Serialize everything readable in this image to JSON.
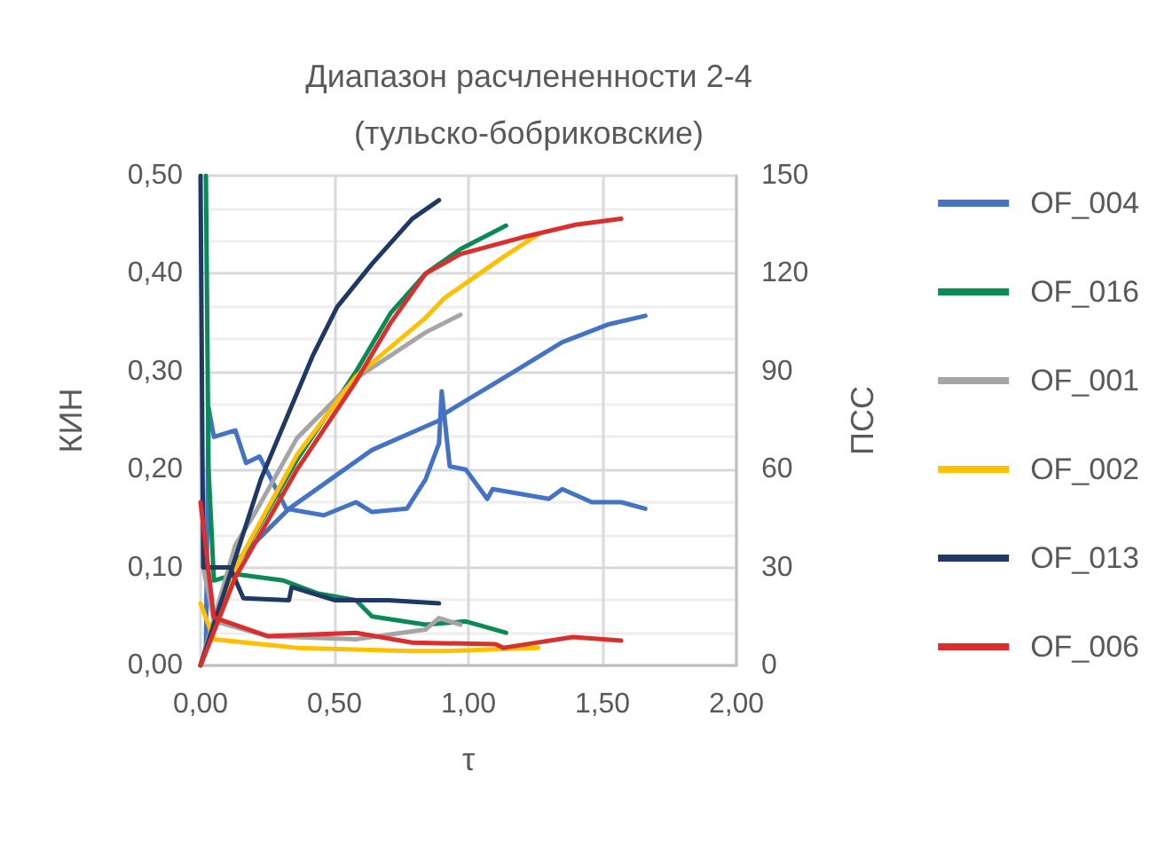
{
  "chart_data": {
    "type": "line",
    "title": "Диапазон расчлененности 2-4\n(тульско-бобриковские)",
    "xlabel": "τ",
    "ylabel": "КИН",
    "y2label": "ПСС",
    "xlim": [
      0,
      2
    ],
    "xticks": [
      {
        "value": 0,
        "label": "0,00"
      },
      {
        "value": 0.5,
        "label": "0,50"
      },
      {
        "value": 1,
        "label": "1,00"
      },
      {
        "value": 1.5,
        "label": "1,50"
      },
      {
        "value": 2,
        "label": "2,00"
      }
    ],
    "ylim": [
      0,
      0.5
    ],
    "yticks": [
      {
        "value": 0,
        "label": "0,00"
      },
      {
        "value": 0.1,
        "label": "0,10"
      },
      {
        "value": 0.2,
        "label": "0,20"
      },
      {
        "value": 0.3,
        "label": "0,30"
      },
      {
        "value": 0.4,
        "label": "0,40"
      },
      {
        "value": 0.5,
        "label": "0,50"
      }
    ],
    "y2lim": [
      0,
      150
    ],
    "y2ticks": [
      0,
      30,
      60,
      90,
      120,
      150
    ],
    "grid": true,
    "legend": "right",
    "marker": "none",
    "line_style": "solid",
    "series": [
      {
        "name": "OF_004",
        "color": "#4472c4",
        "x": [
          0,
          0.11,
          0.33,
          0.64,
          0.89,
          0.91,
          1.17,
          1.35,
          1.52,
          1.66
        ],
        "values": [
          0,
          0.1,
          0.16,
          0.22,
          0.25,
          0.257,
          0.3,
          0.33,
          0.348,
          0.357
        ]
      },
      {
        "color": "#4472c4",
        "axis": "y2",
        "x": [
          0.02,
          0.03,
          0.05,
          0.13,
          0.17,
          0.22,
          0.32,
          0.46,
          0.58,
          0.64,
          0.77,
          0.84,
          0.89,
          0.9,
          0.93,
          0.99,
          1.07,
          1.09,
          1.3,
          1.35,
          1.46,
          1.57,
          1.66
        ],
        "values": [
          5,
          79,
          70,
          72,
          62,
          64,
          48,
          46,
          50,
          47,
          48,
          57,
          68,
          84,
          61,
          60,
          51,
          54,
          51,
          54,
          50,
          50,
          48
        ]
      },
      {
        "name": "OF_016",
        "color": "#0a8a55",
        "x": [
          0,
          0.13,
          0.36,
          0.58,
          0.71,
          0.84,
          0.97,
          1.14
        ],
        "values": [
          0,
          0.1,
          0.21,
          0.3,
          0.36,
          0.4,
          0.425,
          0.449
        ]
      },
      {
        "color": "#0a8a55",
        "axis": "y2",
        "x": [
          0.02,
          0.03,
          0.05,
          0.13,
          0.31,
          0.44,
          0.58,
          0.64,
          0.84,
          0.99,
          1.14
        ],
        "values": [
          150,
          60,
          26,
          28,
          26,
          22,
          20,
          15,
          12.5,
          13.5,
          10
        ]
      },
      {
        "name": "OF_001",
        "color": "#a5a5a5",
        "x": [
          0,
          0.13,
          0.2,
          0.36,
          0.58,
          0.84,
          0.97
        ],
        "values": [
          0,
          0.123,
          0.154,
          0.232,
          0.293,
          0.34,
          0.358
        ]
      },
      {
        "color": "#a5a5a5",
        "axis": "y2",
        "x": [
          0.01,
          0.05,
          0.25,
          0.58,
          0.84,
          0.89,
          0.97
        ],
        "values": [
          30,
          13.6,
          9,
          8,
          11,
          14.5,
          12.5
        ]
      },
      {
        "name": "OF_002",
        "color": "#ffc000",
        "x": [
          0,
          0.13,
          0.36,
          0.58,
          0.71,
          0.84,
          0.91,
          1.13,
          1.26
        ],
        "values": [
          0,
          0.1,
          0.215,
          0.295,
          0.325,
          0.355,
          0.375,
          0.417,
          0.44
        ]
      },
      {
        "color": "#ffc000",
        "axis": "y2",
        "x": [
          0,
          0.05,
          0.36,
          0.79,
          0.91,
          1.26
        ],
        "values": [
          19,
          8,
          5.4,
          4.4,
          4.4,
          5.4
        ]
      },
      {
        "name": "OF_013",
        "color": "#203864",
        "x": [
          0,
          0.225,
          0.42,
          0.51,
          0.64,
          0.79,
          0.89
        ],
        "values": [
          0,
          0.19,
          0.317,
          0.366,
          0.41,
          0.456,
          0.475
        ]
      },
      {
        "color": "#203864",
        "axis": "y2",
        "x": [
          0,
          0.01,
          0.11,
          0.16,
          0.33,
          0.34,
          0.5,
          0.7,
          0.89
        ],
        "values": [
          150,
          30,
          30,
          20.6,
          20,
          24,
          20,
          20,
          19
        ]
      },
      {
        "name": "OF_006",
        "color": "#d9302f",
        "x": [
          0,
          0.13,
          0.36,
          0.58,
          0.71,
          0.84,
          0.97,
          1.2,
          1.4,
          1.57
        ],
        "values": [
          0,
          0.09,
          0.2,
          0.29,
          0.35,
          0.4,
          0.42,
          0.437,
          0.45,
          0.456
        ]
      },
      {
        "color": "#d9302f",
        "axis": "y2",
        "x": [
          0,
          0.05,
          0.25,
          0.58,
          0.79,
          1.1,
          1.13,
          1.39,
          1.57
        ],
        "values": [
          50,
          14.7,
          9,
          10,
          7,
          6.5,
          5.4,
          8.7,
          7.6
        ]
      }
    ]
  }
}
